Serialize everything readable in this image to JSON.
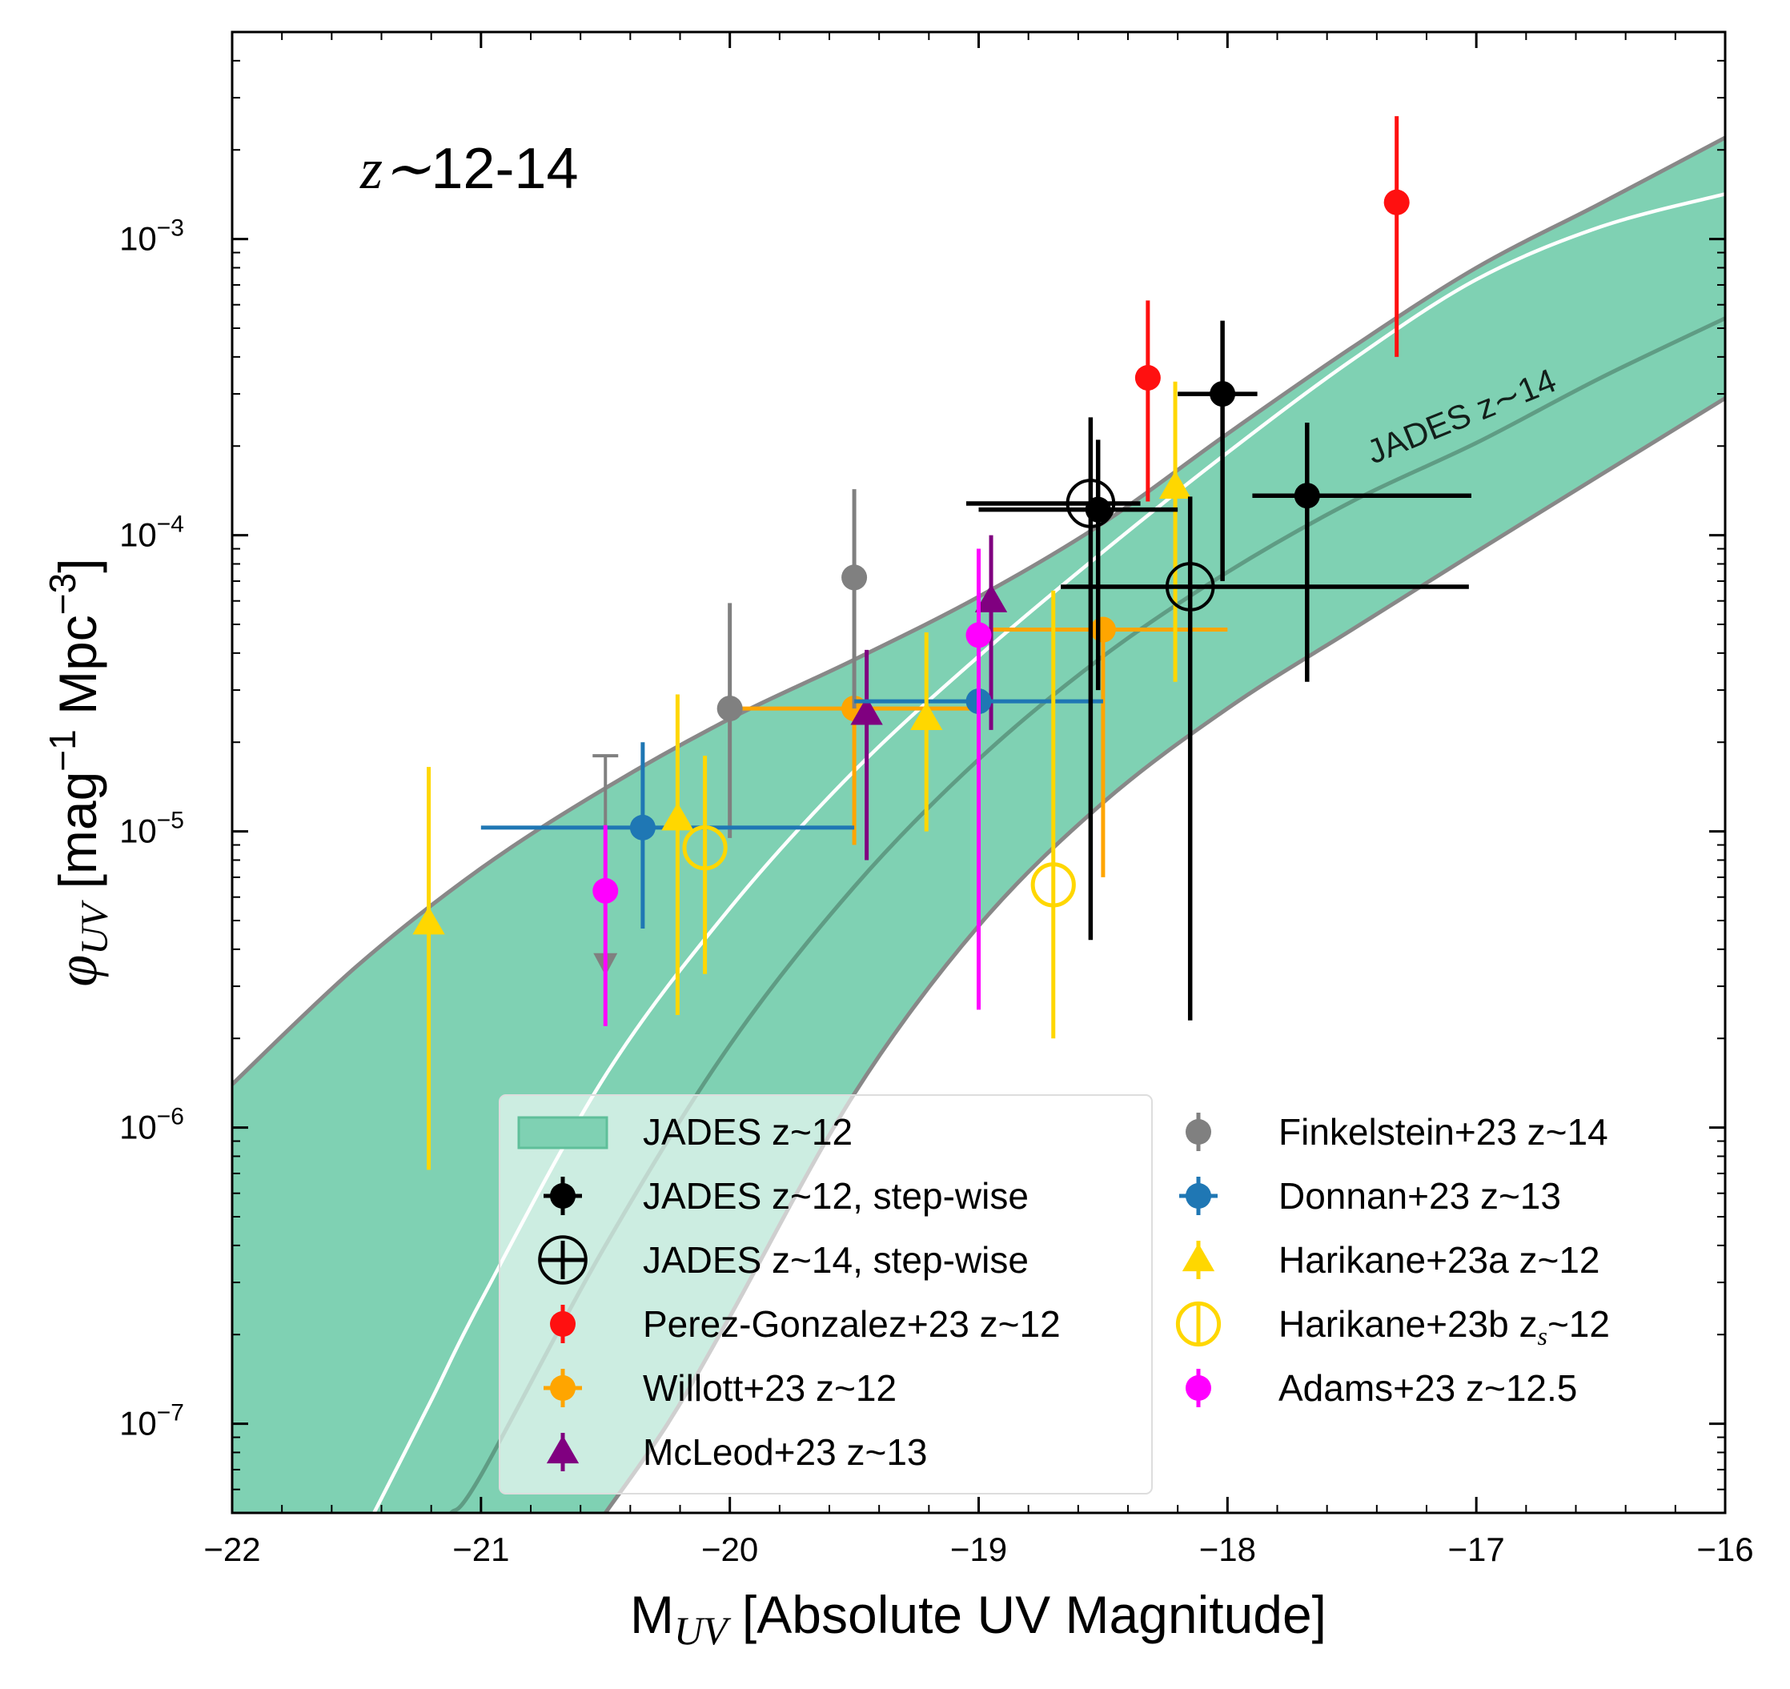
{
  "chart_data": {
    "type": "scatter",
    "title": "z∼12-14",
    "title_prefix": "z∼",
    "title_suffix": "12-14",
    "xlabel": "M_UV [Absolute UV Magnitude]",
    "xlabel_parts": {
      "m": "M",
      "sub": "UV",
      "rest": " [Absolute UV Magnitude]"
    },
    "ylabel": "φ_UV [mag^-1 Mpc^-3]",
    "ylabel_parts": {
      "phi": "φ",
      "sub": "UV",
      "open": " [mag",
      "sup1": "−1",
      "mid": " Mpc",
      "sup2": "−3",
      "close": "]"
    },
    "xlim": [
      -22,
      -16
    ],
    "ylim": [
      5e-08,
      0.005
    ],
    "yscale": "log",
    "xticks": [
      -22,
      -21,
      -20,
      -19,
      -18,
      -17,
      -16
    ],
    "xtick_labels": [
      "−22",
      "−21",
      "−20",
      "−19",
      "−18",
      "−17",
      "−16"
    ],
    "yticks": [
      {
        "value": 0.001,
        "base": "10",
        "exp": "−3"
      },
      {
        "value": 0.0001,
        "base": "10",
        "exp": "−4"
      },
      {
        "value": 1e-05,
        "base": "10",
        "exp": "−5"
      },
      {
        "value": 1e-06,
        "base": "10",
        "exp": "−6"
      },
      {
        "value": 1e-07,
        "base": "10",
        "exp": "−7"
      }
    ],
    "band_label": "JADES z∼14",
    "colors": {
      "band_fill": "#7fd1b3",
      "band_edge": "#888888",
      "z12_line": "#ffffff",
      "z14_line": "#5f9c84",
      "jades": "#000000",
      "perez": "#ff1010",
      "willott": "#ffa500",
      "mcleod": "#800080",
      "finkelstein": "#808080",
      "donnan": "#1f77b4",
      "harikane": "#ffd700",
      "adams": "#ff00ff"
    },
    "model": {
      "band_upper": [
        [
          -22,
          1.4e-06
        ],
        [
          -21.5,
          3.5e-06
        ],
        [
          -21,
          7.5e-06
        ],
        [
          -20.5,
          1.4e-05
        ],
        [
          -20,
          2.4e-05
        ],
        [
          -19.5,
          3.8e-05
        ],
        [
          -19,
          6.2e-05
        ],
        [
          -18.5,
          0.00011
        ],
        [
          -18,
          0.00022
        ],
        [
          -17.5,
          0.00043
        ],
        [
          -17,
          0.0008
        ],
        [
          -16.5,
          0.00132
        ],
        [
          -16,
          0.0022
        ]
      ],
      "band_lower": [
        [
          -20.5,
          5e-08
        ],
        [
          -20.25,
          1e-07
        ],
        [
          -20,
          2.3e-07
        ],
        [
          -19.5,
          1.3e-06
        ],
        [
          -19,
          4.8e-06
        ],
        [
          -18.5,
          1.25e-05
        ],
        [
          -18,
          2.6e-05
        ],
        [
          -17.5,
          4.8e-05
        ],
        [
          -17,
          8.8e-05
        ],
        [
          -16.5,
          0.00016
        ],
        [
          -16,
          0.00029
        ]
      ],
      "z12_curve": [
        [
          -21.43,
          5e-08
        ],
        [
          -21.2,
          1.2e-07
        ],
        [
          -21,
          2.6e-07
        ],
        [
          -20.5,
          1.5e-06
        ],
        [
          -20,
          5.5e-06
        ],
        [
          -19.5,
          1.6e-05
        ],
        [
          -19,
          3.9e-05
        ],
        [
          -18.5,
          8.8e-05
        ],
        [
          -18,
          0.00019
        ],
        [
          -17.5,
          0.00039
        ],
        [
          -17,
          0.00073
        ],
        [
          -16.5,
          0.0011
        ],
        [
          -16,
          0.00142
        ]
      ],
      "z14_curve": [
        [
          -21.12,
          5e-08
        ],
        [
          -21,
          6.7e-08
        ],
        [
          -20.5,
          4e-07
        ],
        [
          -20,
          1.9e-06
        ],
        [
          -19.5,
          6.5e-06
        ],
        [
          -19,
          1.75e-05
        ],
        [
          -18.5,
          3.9e-05
        ],
        [
          -18,
          7.5e-05
        ],
        [
          -17.5,
          0.00013
        ],
        [
          -17,
          0.000205
        ],
        [
          -16.5,
          0.00034
        ],
        [
          -16,
          0.00054
        ]
      ]
    },
    "series": [
      {
        "key": "perez",
        "name": "Perez-Gonzalez+23 z~12",
        "marker": "circle",
        "color": "#ff1010",
        "points": [
          {
            "x": -18.32,
            "y": 0.00034,
            "ylo": 0.00013,
            "yhi": 0.00062
          },
          {
            "x": -17.32,
            "y": 0.00133,
            "ylo": 0.0004,
            "yhi": 0.0026
          }
        ]
      },
      {
        "key": "willott",
        "name": "Willott+23 z~12",
        "marker": "circle",
        "color": "#ffa500",
        "points": [
          {
            "x": -19.5,
            "y": 2.6e-05,
            "xlo": -20.0,
            "xhi": -19.0,
            "ylo": 9e-06,
            "yhi": 2.6e-05
          },
          {
            "x": -18.5,
            "y": 4.8e-05,
            "xlo": -19.0,
            "xhi": -18.0,
            "ylo": 7e-06,
            "yhi": 4.8e-05
          }
        ]
      },
      {
        "key": "mcleod",
        "name": "McLeod+23 z~13",
        "marker": "triangle",
        "color": "#800080",
        "points": [
          {
            "x": -19.45,
            "y": 2.5e-05,
            "ylo": 8e-06,
            "yhi": 4.1e-05
          },
          {
            "x": -18.95,
            "y": 6e-05,
            "ylo": 2.2e-05,
            "yhi": 0.0001
          }
        ]
      },
      {
        "key": "finkelstein",
        "name": "Finkelstein+23 z~14",
        "marker": "circle",
        "color": "#808080",
        "points": [
          {
            "x": -20.0,
            "y": 2.6e-05,
            "ylo": 9.5e-06,
            "yhi": 5.9e-05
          },
          {
            "x": -19.5,
            "y": 7.2e-05,
            "ylo": 2.6e-05,
            "yhi": 0.000143
          }
        ],
        "limits": [
          {
            "x": -20.5,
            "y": 3.6e-06,
            "ytop": 1.8e-05
          }
        ]
      },
      {
        "key": "donnan",
        "name": "Donnan+23 z~13",
        "marker": "circle",
        "color": "#1f77b4",
        "points": [
          {
            "x": -20.35,
            "y": 1.03e-05,
            "xlo": -21.0,
            "xhi": -19.5,
            "ylo": 4.7e-06,
            "yhi": 2e-05
          },
          {
            "x": -19.0,
            "y": 2.75e-05,
            "xlo": -19.5,
            "xhi": -18.5,
            "ylo": 2.75e-05,
            "yhi": 2.75e-05
          }
        ]
      },
      {
        "key": "harikane_a",
        "name": "Harikane+23a z~12",
        "marker": "triangle",
        "color": "#ffd700",
        "points": [
          {
            "x": -21.21,
            "y": 4.9e-06,
            "ylo": 7.2e-07,
            "yhi": 1.65e-05
          },
          {
            "x": -20.21,
            "y": 1.1e-05,
            "ylo": 2.4e-06,
            "yhi": 2.9e-05
          },
          {
            "x": -19.21,
            "y": 2.4e-05,
            "ylo": 1e-05,
            "yhi": 4.7e-05
          },
          {
            "x": -18.21,
            "y": 0.000145,
            "ylo": 3.2e-05,
            "yhi": 0.00033
          }
        ]
      },
      {
        "key": "harikane_b",
        "name": "Harikane+23b z_s~12",
        "marker": "open-circle",
        "color": "#ffd700",
        "points": [
          {
            "x": -20.1,
            "y": 8.8e-06,
            "ylo": 3.3e-06,
            "yhi": 1.8e-05
          },
          {
            "x": -18.7,
            "y": 6.6e-06,
            "ylo": 2e-06,
            "yhi": 6.5e-05
          }
        ]
      },
      {
        "key": "adams",
        "name": "Adams+23 z~12.5",
        "marker": "circle",
        "color": "#ff00ff",
        "points": [
          {
            "x": -20.5,
            "y": 6.3e-06,
            "ylo": 2.2e-06,
            "yhi": 1.05e-05
          },
          {
            "x": -19.0,
            "y": 4.6e-05,
            "ylo": 2.5e-06,
            "yhi": 9e-05
          }
        ]
      },
      {
        "key": "jades12",
        "name": "JADES z~12, step-wise",
        "marker": "circle",
        "color": "#000000",
        "points": [
          {
            "x": -18.52,
            "y": 0.000122,
            "xlo": -19.0,
            "xhi": -18.2,
            "ylo": 3e-05,
            "yhi": 0.00021
          },
          {
            "x": -18.02,
            "y": 0.0003,
            "xlo": -18.2,
            "xhi": -17.88,
            "ylo": 7e-05,
            "yhi": 0.00053
          },
          {
            "x": -17.68,
            "y": 0.000136,
            "xlo": -17.9,
            "xhi": -17.02,
            "ylo": 3.2e-05,
            "yhi": 0.00024
          }
        ]
      },
      {
        "key": "jades14",
        "name": "JADES z~14, step-wise",
        "marker": "open-cross",
        "color": "#000000",
        "points": [
          {
            "x": -18.55,
            "y": 0.000128,
            "xlo": -19.05,
            "xhi": -18.35,
            "ylo": 4.3e-06,
            "yhi": 0.00025
          },
          {
            "x": -18.15,
            "y": 6.7e-05,
            "xlo": -18.67,
            "xhi": -17.03,
            "ylo": 2.3e-06,
            "yhi": 0.000135
          }
        ]
      }
    ],
    "legend": {
      "placement": "lower-right",
      "left_column": [
        {
          "label": "JADES z~12",
          "symbol": "band"
        },
        {
          "label": "JADES z~12, step-wise",
          "symbol": "jades12"
        },
        {
          "label": "JADES z~14, step-wise",
          "symbol": "jades14"
        },
        {
          "label": "Perez-Gonzalez+23 z~12",
          "symbol": "perez"
        },
        {
          "label": "Willott+23 z~12",
          "symbol": "willott"
        },
        {
          "label": "McLeod+23 z~13",
          "symbol": "mcleod"
        }
      ],
      "right_column": [
        {
          "label": "Finkelstein+23 z~14",
          "symbol": "finkelstein"
        },
        {
          "label": "Donnan+23 z~13",
          "symbol": "donnan"
        },
        {
          "label": "Harikane+23a z~12",
          "symbol": "harikane_a"
        },
        {
          "label": "Harikane+23b z",
          "sub": "s",
          "tail": "~12",
          "symbol": "harikane_b"
        },
        {
          "label": "Adams+23 z~12.5",
          "symbol": "adams"
        }
      ]
    }
  }
}
